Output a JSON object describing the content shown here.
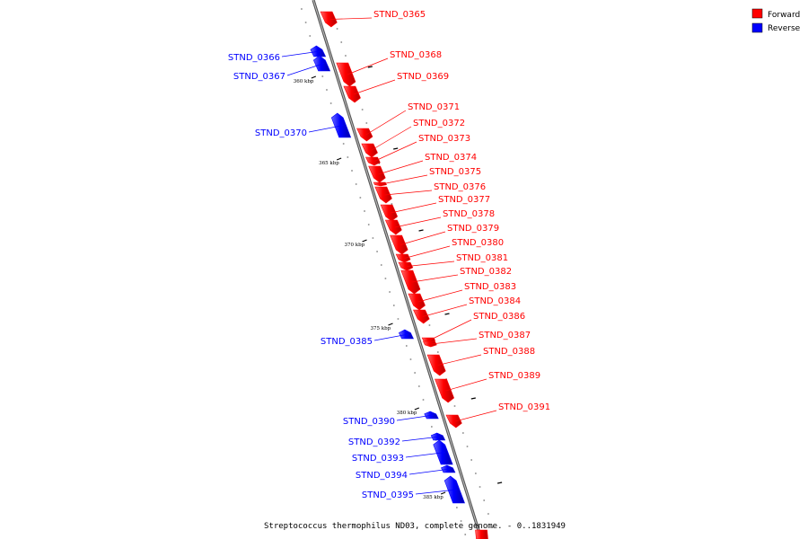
{
  "caption": "Streptococcus thermophilus ND03, complete genome. - 0..1831949",
  "legend": [
    {
      "label": "Forward",
      "color": "#ff0000"
    },
    {
      "label": "Reverse",
      "color": "#0000ff"
    }
  ],
  "colors": {
    "forward": "#ff0000",
    "reverse": "#0000ff",
    "backbone": "#808080"
  },
  "scale_labels": [
    "360 kbp",
    "365 kbp",
    "370 kbp",
    "375 kbp",
    "380 kbp",
    "385 kbp"
  ],
  "genes": [
    {
      "id": "STND_0365",
      "strand": "forward"
    },
    {
      "id": "STND_0366",
      "strand": "reverse"
    },
    {
      "id": "STND_0367",
      "strand": "reverse"
    },
    {
      "id": "STND_0368",
      "strand": "forward"
    },
    {
      "id": "STND_0369",
      "strand": "forward"
    },
    {
      "id": "STND_0370",
      "strand": "reverse"
    },
    {
      "id": "STND_0371",
      "strand": "forward"
    },
    {
      "id": "STND_0372",
      "strand": "forward"
    },
    {
      "id": "STND_0373",
      "strand": "forward"
    },
    {
      "id": "STND_0374",
      "strand": "forward"
    },
    {
      "id": "STND_0375",
      "strand": "forward"
    },
    {
      "id": "STND_0376",
      "strand": "forward"
    },
    {
      "id": "STND_0377",
      "strand": "forward"
    },
    {
      "id": "STND_0378",
      "strand": "forward"
    },
    {
      "id": "STND_0379",
      "strand": "forward"
    },
    {
      "id": "STND_0380",
      "strand": "forward"
    },
    {
      "id": "STND_0381",
      "strand": "forward"
    },
    {
      "id": "STND_0382",
      "strand": "forward"
    },
    {
      "id": "STND_0383",
      "strand": "forward"
    },
    {
      "id": "STND_0384",
      "strand": "forward"
    },
    {
      "id": "STND_0385",
      "strand": "reverse"
    },
    {
      "id": "STND_0386",
      "strand": "forward"
    },
    {
      "id": "STND_0387",
      "strand": "forward"
    },
    {
      "id": "STND_0388",
      "strand": "forward"
    },
    {
      "id": "STND_0389",
      "strand": "forward"
    },
    {
      "id": "STND_0390",
      "strand": "reverse"
    },
    {
      "id": "STND_0391",
      "strand": "forward"
    },
    {
      "id": "STND_0392",
      "strand": "reverse"
    },
    {
      "id": "STND_0393",
      "strand": "reverse"
    },
    {
      "id": "STND_0394",
      "strand": "reverse"
    },
    {
      "id": "STND_0395",
      "strand": "reverse"
    }
  ]
}
